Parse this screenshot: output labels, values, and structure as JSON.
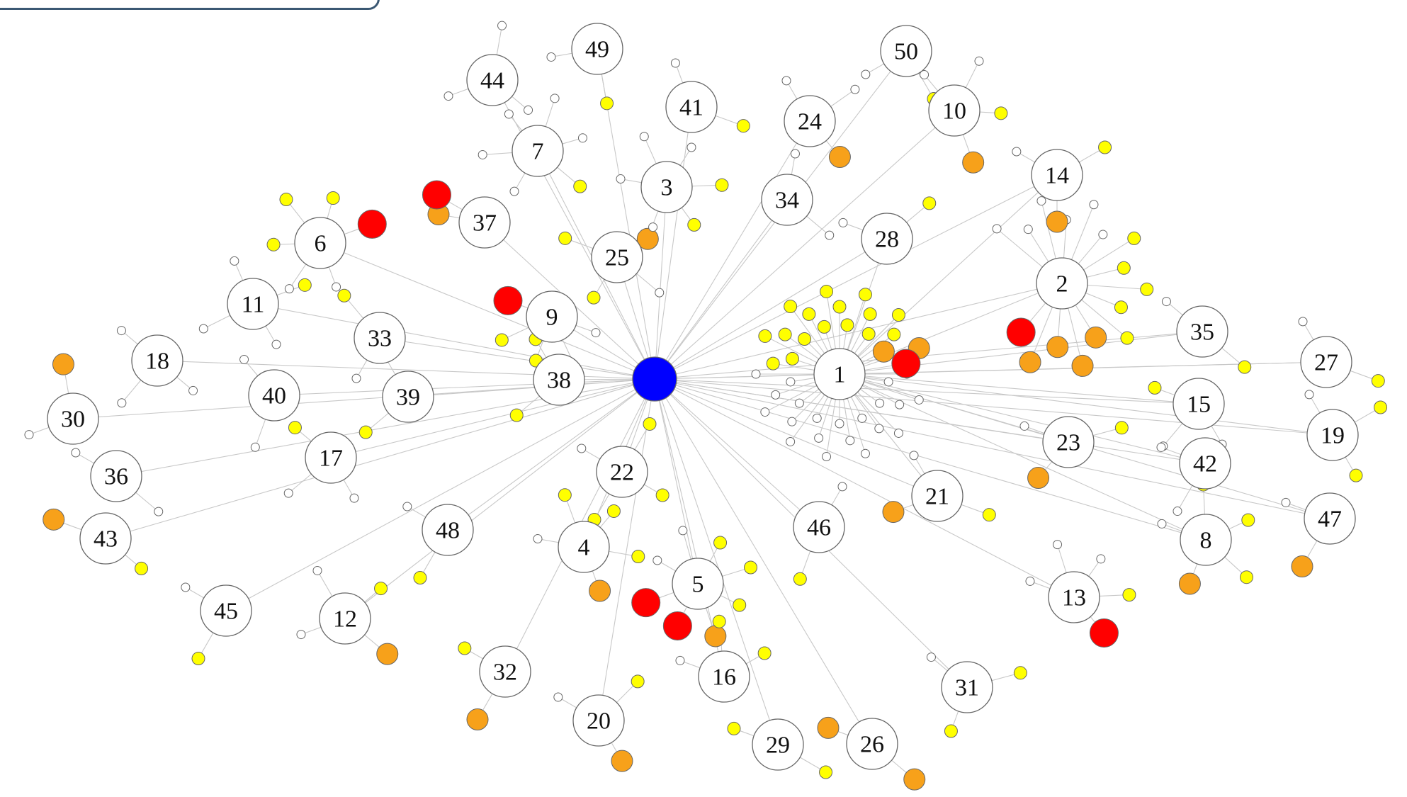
{
  "colors": {
    "hub": "#0000ff",
    "red": "#ff0000",
    "orange": "#f7a11a",
    "yellow": "#ffff00",
    "white": "#ffffff",
    "stroke": "#666666",
    "edge": "#c8c8c8"
  },
  "hub_node": {
    "id": "hub",
    "color": "hub"
  },
  "labeled_nodes": [
    {
      "id": "1",
      "label": "1"
    },
    {
      "id": "2",
      "label": "2"
    },
    {
      "id": "3",
      "label": "3"
    },
    {
      "id": "4",
      "label": "4"
    },
    {
      "id": "5",
      "label": "5"
    },
    {
      "id": "6",
      "label": "6"
    },
    {
      "id": "7",
      "label": "7"
    },
    {
      "id": "8",
      "label": "8"
    },
    {
      "id": "9",
      "label": "9"
    },
    {
      "id": "10",
      "label": "10"
    },
    {
      "id": "11",
      "label": "11"
    },
    {
      "id": "12",
      "label": "12"
    },
    {
      "id": "13",
      "label": "13"
    },
    {
      "id": "14",
      "label": "14"
    },
    {
      "id": "15",
      "label": "15"
    },
    {
      "id": "16",
      "label": "16"
    },
    {
      "id": "17",
      "label": "17"
    },
    {
      "id": "18",
      "label": "18"
    },
    {
      "id": "19",
      "label": "19"
    },
    {
      "id": "20",
      "label": "20"
    },
    {
      "id": "21",
      "label": "21"
    },
    {
      "id": "22",
      "label": "22"
    },
    {
      "id": "23",
      "label": "23"
    },
    {
      "id": "24",
      "label": "24"
    },
    {
      "id": "25",
      "label": "25"
    },
    {
      "id": "26",
      "label": "26"
    },
    {
      "id": "27",
      "label": "27"
    },
    {
      "id": "28",
      "label": "28"
    },
    {
      "id": "29",
      "label": "29"
    },
    {
      "id": "30",
      "label": "30"
    },
    {
      "id": "31",
      "label": "31"
    },
    {
      "id": "32",
      "label": "32"
    },
    {
      "id": "33",
      "label": "33"
    },
    {
      "id": "34",
      "label": "34"
    },
    {
      "id": "35",
      "label": "35"
    },
    {
      "id": "36",
      "label": "36"
    },
    {
      "id": "37",
      "label": "37"
    },
    {
      "id": "38",
      "label": "38"
    },
    {
      "id": "39",
      "label": "39"
    },
    {
      "id": "40",
      "label": "40"
    },
    {
      "id": "41",
      "label": "41"
    },
    {
      "id": "42",
      "label": "42"
    },
    {
      "id": "43",
      "label": "43"
    },
    {
      "id": "44",
      "label": "44"
    },
    {
      "id": "45",
      "label": "45"
    },
    {
      "id": "46",
      "label": "46"
    },
    {
      "id": "47",
      "label": "47"
    },
    {
      "id": "48",
      "label": "48"
    },
    {
      "id": "49",
      "label": "49"
    },
    {
      "id": "50",
      "label": "50"
    }
  ],
  "satellites": {
    "hub": [],
    "1": [
      "s",
      "s",
      "s",
      "s",
      "s",
      "s",
      "s",
      "s",
      "s",
      "s",
      "s",
      "s",
      "s",
      "s",
      "s",
      "s",
      "s",
      "s",
      "s",
      "s",
      "s",
      "y",
      "y",
      "y",
      "y",
      "y",
      "y",
      "y",
      "y",
      "y",
      "y",
      "y",
      "y",
      "y",
      "y",
      "y",
      "y",
      "o",
      "o",
      "r"
    ],
    "2": [
      "s",
      "s",
      "s",
      "s",
      "s",
      "s",
      "y",
      "y",
      "y",
      "y",
      "y",
      "o",
      "o",
      "o",
      "o",
      "r"
    ],
    "3": [
      "s",
      "s",
      "s",
      "y",
      "y",
      "o"
    ],
    "4": [
      "s",
      "y",
      "y",
      "y",
      "o"
    ],
    "5": [
      "s",
      "s",
      "y",
      "y",
      "y",
      "o",
      "r",
      "r"
    ],
    "6": [
      "s",
      "s",
      "y",
      "y",
      "y",
      "r"
    ],
    "7": [
      "s",
      "s",
      "s",
      "s",
      "s",
      "y"
    ],
    "8": [
      "s",
      "y",
      "y",
      "y",
      "o"
    ],
    "9": [
      "s",
      "s",
      "y",
      "y",
      "r"
    ],
    "10": [
      "s",
      "s",
      "y",
      "o"
    ],
    "11": [
      "s",
      "s",
      "s",
      "y"
    ],
    "12": [
      "s",
      "s",
      "y",
      "o"
    ],
    "13": [
      "s",
      "s",
      "s",
      "y",
      "r"
    ],
    "14": [
      "s",
      "y",
      "o"
    ],
    "15": [
      "s",
      "s",
      "y"
    ],
    "16": [
      "s",
      "y",
      "y"
    ],
    "17": [
      "s",
      "s",
      "y"
    ],
    "18": [
      "s",
      "s",
      "s"
    ],
    "19": [
      "s",
      "y",
      "y"
    ],
    "20": [
      "s",
      "y",
      "o"
    ],
    "21": [
      "s",
      "y",
      "o"
    ],
    "22": [
      "s",
      "y",
      "y",
      "y"
    ],
    "23": [
      "s",
      "y",
      "o"
    ],
    "24": [
      "s",
      "s",
      "o"
    ],
    "25": [
      "s",
      "s",
      "y",
      "y"
    ],
    "26": [
      "o",
      "o"
    ],
    "27": [
      "s",
      "y"
    ],
    "28": [
      "s",
      "y"
    ],
    "29": [
      "y",
      "y"
    ],
    "30": [
      "s",
      "o"
    ],
    "31": [
      "s",
      "y",
      "y"
    ],
    "32": [
      "y",
      "o"
    ],
    "33": [
      "s",
      "y"
    ],
    "34": [
      "s",
      "s"
    ],
    "35": [
      "s",
      "y"
    ],
    "36": [
      "s",
      "s"
    ],
    "37": [
      "o",
      "r"
    ],
    "38": [
      "y",
      "y"
    ],
    "39": [
      "y",
      "y"
    ],
    "40": [
      "s",
      "s"
    ],
    "41": [
      "s",
      "y"
    ],
    "42": [
      "s",
      "s"
    ],
    "43": [
      "y",
      "o"
    ],
    "44": [
      "s",
      "s",
      "s"
    ],
    "45": [
      "s",
      "y"
    ],
    "46": [
      "s",
      "y"
    ],
    "47": [
      "s",
      "o"
    ],
    "48": [
      "s",
      "y"
    ],
    "49": [
      "s",
      "y"
    ],
    "50": [
      "s",
      "y"
    ]
  },
  "extra_edges": [
    [
      "1",
      "2"
    ],
    [
      "1",
      "23"
    ],
    [
      "1",
      "21"
    ],
    [
      "1",
      "8"
    ],
    [
      "1",
      "35"
    ],
    [
      "1",
      "27"
    ],
    [
      "1",
      "15"
    ],
    [
      "1",
      "19"
    ],
    [
      "1",
      "42"
    ],
    [
      "1",
      "47"
    ],
    [
      "1",
      "14"
    ],
    [
      "1",
      "28"
    ]
  ]
}
